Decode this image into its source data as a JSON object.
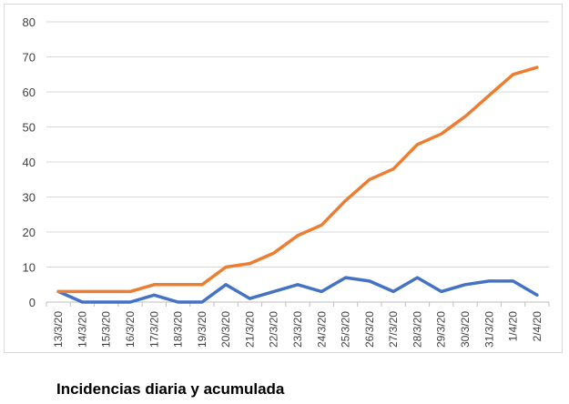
{
  "caption": "Incidencias diaria y acumulada",
  "chart_data": {
    "type": "line",
    "title": "",
    "xlabel": "",
    "ylabel": "",
    "ylim": [
      0,
      80
    ],
    "yticks": [
      0,
      10,
      20,
      30,
      40,
      50,
      60,
      70,
      80
    ],
    "grid": true,
    "legend": "none",
    "categories": [
      "13/3/20",
      "14/3/20",
      "15/3/20",
      "16/3/20",
      "17/3/20",
      "18/3/20",
      "19/3/20",
      "20/3/20",
      "21/3/20",
      "22/3/20",
      "23/3/20",
      "24/3/20",
      "25/3/20",
      "26/3/20",
      "27/3/20",
      "28/3/20",
      "29/3/20",
      "30/3/20",
      "31/3/20",
      "1/4/20",
      "2/4/20"
    ],
    "series": [
      {
        "color": "#4472c4",
        "values": [
          3,
          0,
          0,
          0,
          2,
          0,
          0,
          5,
          1,
          3,
          5,
          3,
          7,
          6,
          3,
          7,
          3,
          5,
          6,
          6,
          2
        ]
      },
      {
        "color": "#ed7d31",
        "values": [
          3,
          3,
          3,
          3,
          5,
          5,
          5,
          10,
          11,
          14,
          19,
          22,
          29,
          35,
          38,
          45,
          48,
          53,
          59,
          65,
          67
        ]
      }
    ]
  }
}
